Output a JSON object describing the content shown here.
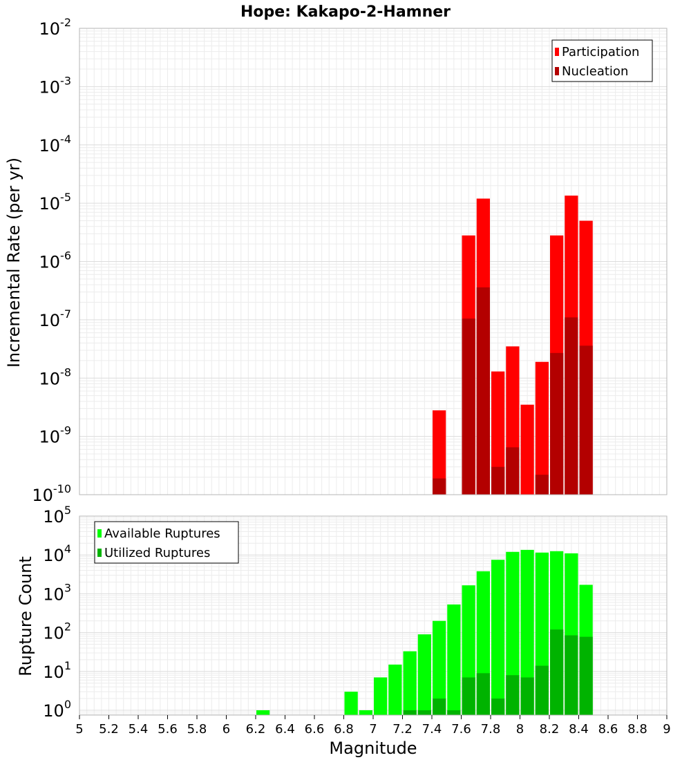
{
  "chart_data": [
    {
      "type": "bar",
      "title": "Hope: Kakapo-2-Hamner",
      "xlabel": "Magnitude",
      "ylabel": "Incremental Rate (per yr)",
      "xlim": [
        5,
        9
      ],
      "ylim": [
        1e-10,
        0.01
      ],
      "yscale": "log",
      "grid": true,
      "legend": "top-right",
      "x_ticks": [
        "5",
        "5.2",
        "5.4",
        "5.6",
        "5.8",
        "6",
        "6.2",
        "6.4",
        "6.6",
        "6.8",
        "7",
        "7.2",
        "7.4",
        "7.6",
        "7.8",
        "8",
        "8.2",
        "8.4",
        "8.6",
        "8.8",
        "9"
      ],
      "y_ticks": [
        {
          "base": "10",
          "exp": "-10",
          "value": 1e-10
        },
        {
          "base": "10",
          "exp": "-9",
          "value": 1e-09
        },
        {
          "base": "10",
          "exp": "-8",
          "value": 1e-08
        },
        {
          "base": "10",
          "exp": "-7",
          "value": 1e-07
        },
        {
          "base": "10",
          "exp": "-6",
          "value": 1e-06
        },
        {
          "base": "10",
          "exp": "-5",
          "value": 1e-05
        },
        {
          "base": "10",
          "exp": "-4",
          "value": 0.0001
        },
        {
          "base": "10",
          "exp": "-3",
          "value": 0.001
        },
        {
          "base": "10",
          "exp": "-2",
          "value": 0.01
        }
      ],
      "series": [
        {
          "name": "Participation",
          "color": "#ff0000",
          "points": [
            {
              "x": 7.45,
              "y": 2.8e-09
            },
            {
              "x": 7.65,
              "y": 2.8e-06
            },
            {
              "x": 7.75,
              "y": 1.2e-05
            },
            {
              "x": 7.85,
              "y": 1.3e-08
            },
            {
              "x": 7.95,
              "y": 3.5e-08
            },
            {
              "x": 8.05,
              "y": 3.5e-09
            },
            {
              "x": 8.15,
              "y": 1.9e-08
            },
            {
              "x": 8.25,
              "y": 2.8e-06
            },
            {
              "x": 8.35,
              "y": 1.35e-05
            },
            {
              "x": 8.45,
              "y": 5e-06
            }
          ]
        },
        {
          "name": "Nucleation",
          "color": "#b30000",
          "points": [
            {
              "x": 7.45,
              "y": 1.9e-10
            },
            {
              "x": 7.65,
              "y": 1.05e-07
            },
            {
              "x": 7.75,
              "y": 3.6e-07
            },
            {
              "x": 7.85,
              "y": 3e-10
            },
            {
              "x": 7.95,
              "y": 6.5e-10
            },
            {
              "x": 8.05,
              "y": 1e-10
            },
            {
              "x": 8.15,
              "y": 2.2e-10
            },
            {
              "x": 8.25,
              "y": 2.7e-08
            },
            {
              "x": 8.35,
              "y": 1.1e-07
            },
            {
              "x": 8.45,
              "y": 3.6e-08
            }
          ]
        }
      ]
    },
    {
      "type": "bar",
      "title": "",
      "xlabel": "Magnitude",
      "ylabel": "Rupture Count",
      "xlim": [
        5,
        9
      ],
      "ylim": [
        0.75,
        100000
      ],
      "yscale": "log",
      "grid": true,
      "legend": "top-left",
      "y_ticks": [
        {
          "base": "10",
          "exp": "0",
          "value": 1
        },
        {
          "base": "10",
          "exp": "1",
          "value": 10
        },
        {
          "base": "10",
          "exp": "2",
          "value": 100
        },
        {
          "base": "10",
          "exp": "3",
          "value": 1000
        },
        {
          "base": "10",
          "exp": "4",
          "value": 10000
        },
        {
          "base": "10",
          "exp": "5",
          "value": 100000
        }
      ],
      "series": [
        {
          "name": "Available Ruptures",
          "color": "#00ff00",
          "points": [
            {
              "x": 6.25,
              "y": 1
            },
            {
              "x": 6.85,
              "y": 3
            },
            {
              "x": 6.95,
              "y": 1
            },
            {
              "x": 7.05,
              "y": 7
            },
            {
              "x": 7.15,
              "y": 15
            },
            {
              "x": 7.25,
              "y": 33
            },
            {
              "x": 7.35,
              "y": 90
            },
            {
              "x": 7.45,
              "y": 200
            },
            {
              "x": 7.55,
              "y": 530
            },
            {
              "x": 7.65,
              "y": 1650
            },
            {
              "x": 7.75,
              "y": 3800
            },
            {
              "x": 7.85,
              "y": 7500
            },
            {
              "x": 7.95,
              "y": 12000
            },
            {
              "x": 8.05,
              "y": 13500
            },
            {
              "x": 8.15,
              "y": 11500
            },
            {
              "x": 8.25,
              "y": 12500
            },
            {
              "x": 8.35,
              "y": 11000
            },
            {
              "x": 8.45,
              "y": 1700
            }
          ]
        },
        {
          "name": "Utilized Ruptures",
          "color": "#00b300",
          "points": [
            {
              "x": 7.25,
              "y": 1
            },
            {
              "x": 7.35,
              "y": 1
            },
            {
              "x": 7.45,
              "y": 2
            },
            {
              "x": 7.55,
              "y": 1
            },
            {
              "x": 7.65,
              "y": 7
            },
            {
              "x": 7.75,
              "y": 9
            },
            {
              "x": 7.85,
              "y": 2
            },
            {
              "x": 7.95,
              "y": 8
            },
            {
              "x": 8.05,
              "y": 7
            },
            {
              "x": 8.15,
              "y": 14
            },
            {
              "x": 8.25,
              "y": 120
            },
            {
              "x": 8.35,
              "y": 85
            },
            {
              "x": 8.45,
              "y": 78
            }
          ]
        }
      ]
    }
  ]
}
